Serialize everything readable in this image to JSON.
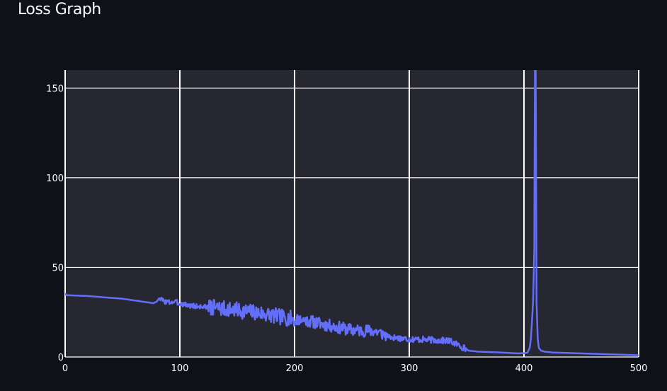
{
  "page": {
    "title": "Loss Graph"
  },
  "chart_data": {
    "type": "line",
    "title": "",
    "xlabel": "",
    "ylabel": "",
    "xlim": [
      0,
      500
    ],
    "ylim": [
      0,
      160
    ],
    "x_ticks": [
      0,
      100,
      200,
      300,
      400,
      500
    ],
    "y_ticks": [
      0,
      50,
      100,
      150
    ],
    "grid": true,
    "colors": {
      "plot_background": "#262730",
      "grid": "#ffffff",
      "line": "#636efa",
      "page_background": "#0e1117"
    },
    "series": [
      {
        "anchor_points": [
          [
            0,
            35.5
          ],
          [
            1,
            34.5
          ],
          [
            20,
            34
          ],
          [
            50,
            32.5
          ],
          [
            77,
            30
          ],
          [
            80,
            31
          ],
          [
            82,
            32.8
          ],
          [
            86,
            31.2
          ],
          [
            90,
            30.5
          ],
          [
            95,
            30.8
          ],
          [
            100,
            30
          ],
          [
            110,
            28.5
          ],
          [
            130,
            27.5
          ],
          [
            150,
            26
          ],
          [
            170,
            24.5
          ],
          [
            190,
            22
          ],
          [
            210,
            20.5
          ],
          [
            230,
            17.5
          ],
          [
            250,
            15
          ],
          [
            270,
            14.5
          ],
          [
            285,
            11
          ],
          [
            300,
            10
          ],
          [
            320,
            9.5
          ],
          [
            335,
            9
          ],
          [
            345,
            6
          ],
          [
            352,
            3.5
          ],
          [
            360,
            3
          ],
          [
            380,
            2.5
          ],
          [
            395,
            2
          ],
          [
            400,
            2.1
          ],
          [
            403,
            2.4
          ],
          [
            405,
            5
          ],
          [
            406,
            10
          ],
          [
            407,
            20
          ],
          [
            408,
            32
          ],
          [
            409,
            60
          ],
          [
            409.6,
            165
          ],
          [
            410.2,
            165
          ],
          [
            411,
            30
          ],
          [
            412,
            10
          ],
          [
            413,
            5
          ],
          [
            415,
            3.5
          ],
          [
            418,
            3
          ],
          [
            425,
            2.5
          ],
          [
            450,
            2
          ],
          [
            470,
            1.6
          ],
          [
            490,
            1.2
          ],
          [
            500,
            1
          ]
        ],
        "noise_bands": [
          {
            "x_start": 83,
            "x_end": 125,
            "amplitude": 1.5,
            "seed": 3
          },
          {
            "x_start": 125,
            "x_end": 200,
            "amplitude": 4.5,
            "seed": 7
          },
          {
            "x_start": 200,
            "x_end": 280,
            "amplitude": 3.5,
            "seed": 11
          },
          {
            "x_start": 280,
            "x_end": 350,
            "amplitude": 1.8,
            "seed": 17
          }
        ]
      }
    ]
  }
}
